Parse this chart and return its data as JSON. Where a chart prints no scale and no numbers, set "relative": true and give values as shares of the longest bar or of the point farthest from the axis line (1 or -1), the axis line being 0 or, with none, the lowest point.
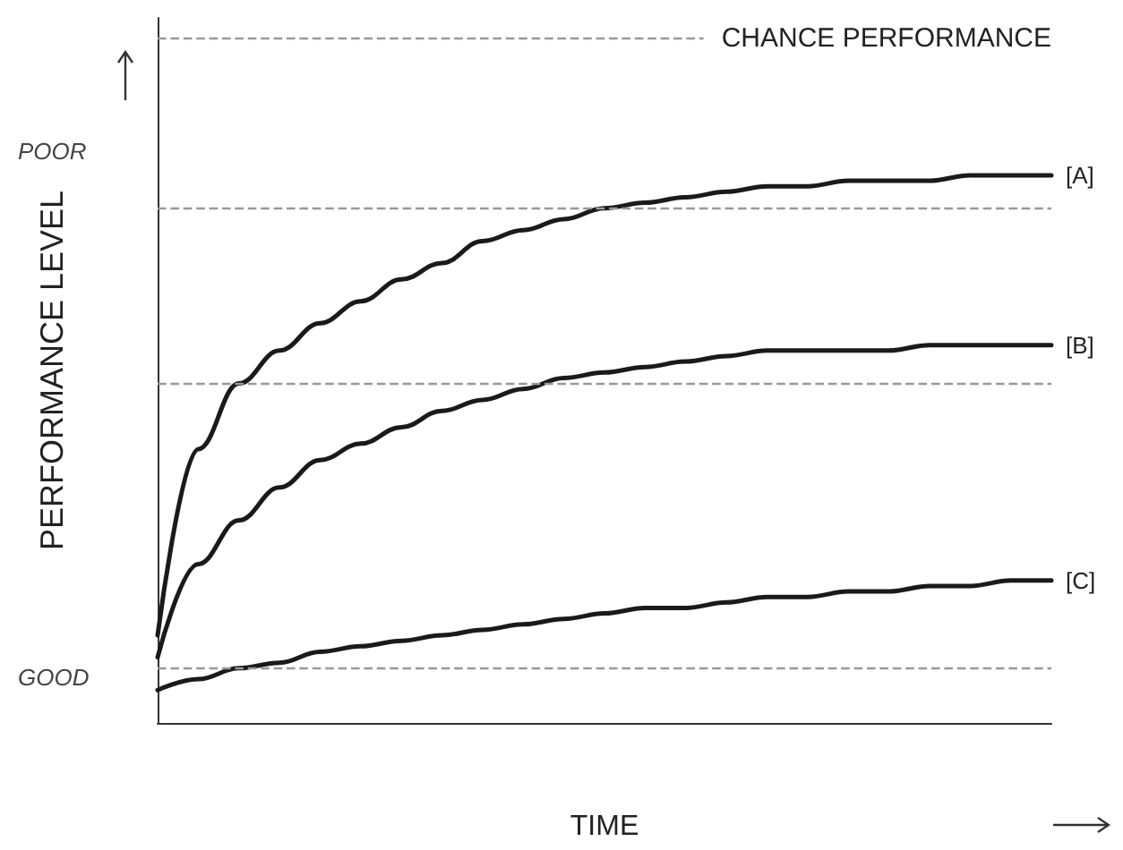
{
  "chart_data": {
    "type": "line",
    "relative": true,
    "xlabel": "TIME",
    "ylabel": "PERFORMANCE LEVEL",
    "categories": [
      null,
      null,
      null,
      null,
      null,
      null,
      null,
      null,
      null,
      null,
      null,
      null,
      null,
      null,
      null,
      null,
      null,
      null,
      null,
      null,
      null,
      null,
      null
    ],
    "series": [
      {
        "name": "[A]",
        "color": "#1a1a1a",
        "values": [
          0.16,
          0.5,
          0.62,
          0.68,
          0.73,
          0.77,
          0.81,
          0.84,
          0.88,
          0.9,
          0.92,
          0.94,
          0.95,
          0.96,
          0.97,
          0.98,
          0.98,
          0.99,
          0.99,
          0.99,
          1,
          1,
          1
        ]
      },
      {
        "name": "[B]",
        "color": "#1a1a1a",
        "values": [
          0.12,
          0.29,
          0.37,
          0.43,
          0.48,
          0.51,
          0.54,
          0.57,
          0.59,
          0.61,
          0.63,
          0.64,
          0.65,
          0.66,
          0.67,
          0.68,
          0.68,
          0.68,
          0.68,
          0.69,
          0.69,
          0.69,
          0.69
        ]
      },
      {
        "name": "[C]",
        "color": "#1a1a1a",
        "values": [
          0.06,
          0.08,
          0.1,
          0.11,
          0.13,
          0.14,
          0.15,
          0.16,
          0.17,
          0.18,
          0.19,
          0.2,
          0.21,
          0.21,
          0.22,
          0.23,
          0.23,
          0.24,
          0.24,
          0.25,
          0.25,
          0.26,
          0.26
        ]
      }
    ],
    "ref_lines": [
      {
        "axis": "y",
        "value": 1.25,
        "label": "CHANCE PERFORMANCE",
        "color": "#999999",
        "line_style": "dashed"
      },
      {
        "axis": "y",
        "value": 0.94,
        "label": null,
        "color": "#999999",
        "line_style": "dashed"
      },
      {
        "axis": "y",
        "value": 0.62,
        "label": null,
        "color": "#999999",
        "line_style": "dashed"
      },
      {
        "axis": "y",
        "value": 0.1,
        "label": null,
        "color": "#999999",
        "line_style": "dashed"
      }
    ],
    "annotations": [
      "POOR",
      "GOOD"
    ],
    "marker": "none",
    "line_style": "solid",
    "grid": false,
    "legend": false
  }
}
